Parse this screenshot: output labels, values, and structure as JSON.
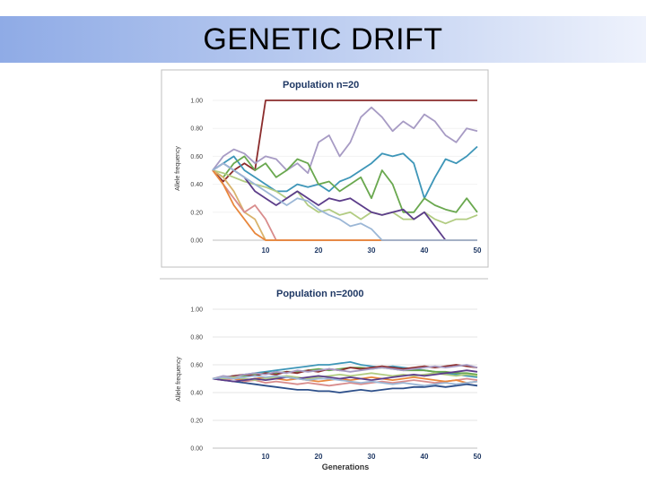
{
  "slide": {
    "title": "GENETIC DRIFT"
  },
  "chart_data": [
    {
      "type": "line",
      "title": "Population n=20",
      "xlabel": "",
      "ylabel": "Allele frequency",
      "xlim": [
        0,
        50
      ],
      "ylim": [
        0,
        1
      ],
      "x_ticks": [
        "10",
        "20",
        "30",
        "40",
        "50"
      ],
      "y_ticks": [
        "0.00",
        "0.20",
        "0.40",
        "0.60",
        "0.80",
        "1.00"
      ],
      "x": [
        0,
        2,
        4,
        6,
        8,
        10,
        12,
        14,
        16,
        18,
        20,
        22,
        24,
        26,
        28,
        30,
        32,
        34,
        36,
        38,
        40,
        42,
        44,
        46,
        48,
        50
      ],
      "series": [
        {
          "color": "#8b2c2c",
          "values": [
            0.5,
            0.42,
            0.5,
            0.55,
            0.5,
            1.0,
            1.0,
            1.0,
            1.0,
            1.0,
            1.0,
            1.0,
            1.0,
            1.0,
            1.0,
            1.0,
            1.0,
            1.0,
            1.0,
            1.0,
            1.0,
            1.0,
            1.0,
            1.0,
            1.0,
            1.0
          ]
        },
        {
          "color": "#a79bc4",
          "values": [
            0.5,
            0.6,
            0.65,
            0.62,
            0.55,
            0.6,
            0.58,
            0.5,
            0.55,
            0.48,
            0.7,
            0.75,
            0.6,
            0.7,
            0.88,
            0.95,
            0.88,
            0.78,
            0.85,
            0.8,
            0.9,
            0.85,
            0.75,
            0.7,
            0.8,
            0.78
          ]
        },
        {
          "color": "#3e96b8",
          "values": [
            0.5,
            0.55,
            0.6,
            0.5,
            0.45,
            0.4,
            0.35,
            0.35,
            0.4,
            0.38,
            0.4,
            0.35,
            0.42,
            0.45,
            0.5,
            0.55,
            0.62,
            0.6,
            0.62,
            0.55,
            0.3,
            0.45,
            0.58,
            0.55,
            0.6,
            0.67
          ]
        },
        {
          "color": "#6aa84f",
          "values": [
            0.5,
            0.45,
            0.55,
            0.6,
            0.5,
            0.55,
            0.45,
            0.5,
            0.58,
            0.55,
            0.4,
            0.42,
            0.35,
            0.4,
            0.45,
            0.3,
            0.5,
            0.4,
            0.2,
            0.2,
            0.3,
            0.25,
            0.22,
            0.2,
            0.3,
            0.2
          ]
        },
        {
          "color": "#b2cc82",
          "values": [
            0.5,
            0.48,
            0.45,
            0.42,
            0.4,
            0.38,
            0.35,
            0.3,
            0.35,
            0.25,
            0.2,
            0.22,
            0.18,
            0.2,
            0.15,
            0.2,
            0.18,
            0.2,
            0.15,
            0.15,
            0.2,
            0.15,
            0.12,
            0.15,
            0.15,
            0.18
          ]
        },
        {
          "color": "#5c3d8a",
          "values": [
            0.5,
            0.55,
            0.5,
            0.45,
            0.35,
            0.3,
            0.25,
            0.3,
            0.35,
            0.3,
            0.25,
            0.3,
            0.28,
            0.3,
            0.25,
            0.2,
            0.18,
            0.2,
            0.22,
            0.15,
            0.2,
            0.1,
            0.0,
            0.0,
            0.0,
            0.0
          ]
        },
        {
          "color": "#d9b36c",
          "values": [
            0.5,
            0.45,
            0.35,
            0.2,
            0.15,
            0.0,
            0.0,
            0.0,
            0.0,
            0.0,
            0.0,
            0.0,
            0.0,
            0.0,
            0.0,
            0.0,
            0.0,
            0.0,
            0.0,
            0.0,
            0.0,
            0.0,
            0.0,
            0.0,
            0.0,
            0.0
          ]
        },
        {
          "color": "#d88c8c",
          "values": [
            0.5,
            0.4,
            0.3,
            0.2,
            0.25,
            0.15,
            0.0,
            0.0,
            0.0,
            0.0,
            0.0,
            0.0,
            0.0,
            0.0,
            0.0,
            0.0,
            0.0,
            0.0,
            0.0,
            0.0,
            0.0,
            0.0,
            0.0,
            0.0,
            0.0,
            0.0
          ]
        },
        {
          "color": "#e8873c",
          "values": [
            0.5,
            0.4,
            0.25,
            0.15,
            0.05,
            0.0,
            0.0,
            0.0,
            0.0,
            0.0,
            0.0,
            0.0,
            0.0,
            0.0,
            0.0,
            0.0,
            0.0,
            0.0,
            0.0,
            0.0,
            0.0,
            0.0,
            0.0,
            0.0,
            0.0,
            0.0
          ]
        },
        {
          "color": "#9cb7d6",
          "values": [
            0.5,
            0.55,
            0.5,
            0.45,
            0.4,
            0.35,
            0.3,
            0.25,
            0.3,
            0.28,
            0.22,
            0.18,
            0.15,
            0.1,
            0.12,
            0.08,
            0.0,
            0.0,
            0.0,
            0.0,
            0.0,
            0.0,
            0.0,
            0.0,
            0.0,
            0.0
          ]
        }
      ]
    },
    {
      "type": "line",
      "title": "Population n=2000",
      "xlabel": "Generations",
      "ylabel": "Allele frequency",
      "xlim": [
        0,
        50
      ],
      "ylim": [
        0,
        1
      ],
      "x_ticks": [
        "10",
        "20",
        "30",
        "40",
        "50"
      ],
      "y_ticks": [
        "0.00",
        "0.20",
        "0.40",
        "0.60",
        "0.80",
        "1.00"
      ],
      "x": [
        0,
        2,
        4,
        6,
        8,
        10,
        12,
        14,
        16,
        18,
        20,
        22,
        24,
        26,
        28,
        30,
        32,
        34,
        36,
        38,
        40,
        42,
        44,
        46,
        48,
        50
      ],
      "series": [
        {
          "color": "#3e96b8",
          "values": [
            0.5,
            0.51,
            0.52,
            0.53,
            0.54,
            0.55,
            0.56,
            0.57,
            0.58,
            0.59,
            0.6,
            0.6,
            0.61,
            0.62,
            0.6,
            0.59,
            0.58,
            0.59,
            0.58,
            0.57,
            0.56,
            0.55,
            0.54,
            0.53,
            0.52,
            0.51
          ]
        },
        {
          "color": "#2d4f8a",
          "values": [
            0.5,
            0.49,
            0.48,
            0.47,
            0.46,
            0.45,
            0.44,
            0.43,
            0.42,
            0.42,
            0.41,
            0.41,
            0.4,
            0.41,
            0.42,
            0.41,
            0.42,
            0.43,
            0.43,
            0.44,
            0.44,
            0.45,
            0.44,
            0.45,
            0.46,
            0.45
          ]
        },
        {
          "color": "#6aa84f",
          "values": [
            0.5,
            0.51,
            0.52,
            0.52,
            0.53,
            0.54,
            0.54,
            0.55,
            0.55,
            0.56,
            0.57,
            0.56,
            0.57,
            0.58,
            0.58,
            0.57,
            0.58,
            0.57,
            0.56,
            0.56,
            0.56,
            0.55,
            0.55,
            0.54,
            0.54,
            0.53
          ]
        },
        {
          "color": "#8b2c2c",
          "values": [
            0.5,
            0.51,
            0.52,
            0.53,
            0.52,
            0.54,
            0.53,
            0.55,
            0.54,
            0.56,
            0.55,
            0.57,
            0.56,
            0.58,
            0.57,
            0.58,
            0.59,
            0.58,
            0.57,
            0.58,
            0.59,
            0.58,
            0.59,
            0.6,
            0.59,
            0.58
          ]
        },
        {
          "color": "#a79bc4",
          "values": [
            0.5,
            0.52,
            0.51,
            0.53,
            0.54,
            0.53,
            0.55,
            0.54,
            0.56,
            0.55,
            0.56,
            0.57,
            0.56,
            0.55,
            0.56,
            0.57,
            0.58,
            0.57,
            0.56,
            0.57,
            0.58,
            0.59,
            0.58,
            0.59,
            0.6,
            0.58
          ]
        },
        {
          "color": "#d88c8c",
          "values": [
            0.5,
            0.49,
            0.5,
            0.48,
            0.49,
            0.47,
            0.48,
            0.47,
            0.46,
            0.47,
            0.46,
            0.45,
            0.46,
            0.47,
            0.46,
            0.47,
            0.48,
            0.47,
            0.48,
            0.49,
            0.48,
            0.47,
            0.48,
            0.49,
            0.5,
            0.49
          ]
        },
        {
          "color": "#e8873c",
          "values": [
            0.5,
            0.51,
            0.5,
            0.49,
            0.5,
            0.51,
            0.5,
            0.49,
            0.5,
            0.49,
            0.48,
            0.49,
            0.5,
            0.49,
            0.5,
            0.51,
            0.5,
            0.49,
            0.5,
            0.51,
            0.5,
            0.49,
            0.48,
            0.49,
            0.47,
            0.48
          ]
        },
        {
          "color": "#b2cc82",
          "values": [
            0.5,
            0.5,
            0.51,
            0.5,
            0.49,
            0.5,
            0.51,
            0.52,
            0.51,
            0.5,
            0.51,
            0.52,
            0.53,
            0.52,
            0.53,
            0.54,
            0.53,
            0.52,
            0.53,
            0.52,
            0.53,
            0.54,
            0.53,
            0.52,
            0.53,
            0.52
          ]
        },
        {
          "color": "#5c3d8a",
          "values": [
            0.5,
            0.49,
            0.48,
            0.49,
            0.5,
            0.49,
            0.5,
            0.51,
            0.5,
            0.51,
            0.52,
            0.51,
            0.5,
            0.51,
            0.5,
            0.49,
            0.5,
            0.51,
            0.52,
            0.53,
            0.52,
            0.53,
            0.54,
            0.55,
            0.56,
            0.55
          ]
        },
        {
          "color": "#9cb7d6",
          "values": [
            0.5,
            0.51,
            0.5,
            0.51,
            0.52,
            0.51,
            0.52,
            0.51,
            0.5,
            0.49,
            0.5,
            0.5,
            0.49,
            0.48,
            0.47,
            0.48,
            0.47,
            0.46,
            0.47,
            0.46,
            0.45,
            0.46,
            0.47,
            0.46,
            0.47,
            0.48
          ]
        }
      ]
    }
  ]
}
